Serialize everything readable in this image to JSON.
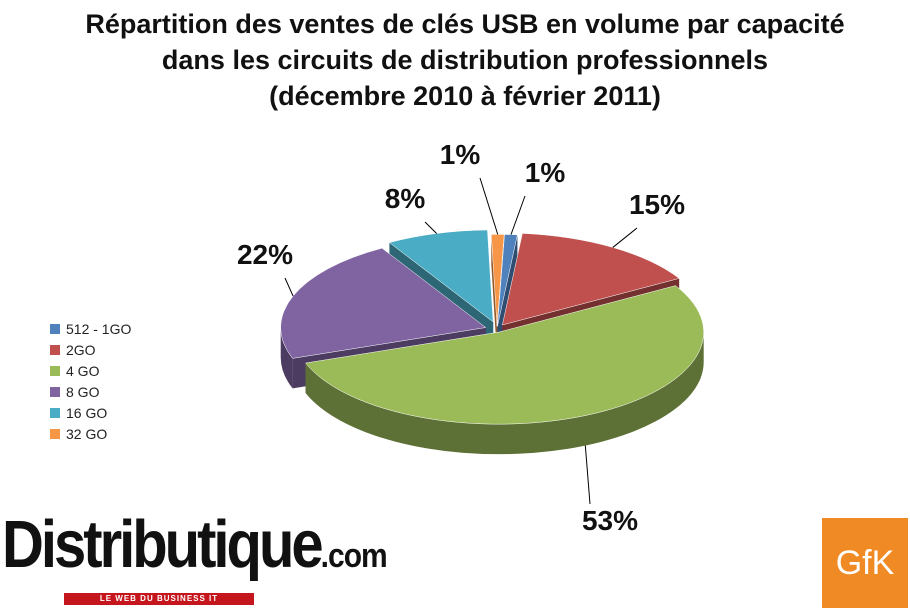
{
  "title": {
    "line1": "Répartition des ventes de clés USB en volume par capacité",
    "line2": "dans les circuits de distribution professionnels",
    "line3": "(décembre 2010 à février 2011)"
  },
  "chart_data": {
    "type": "pie",
    "title": "Répartition des ventes de clés USB en volume par capacité dans les circuits de distribution professionnels (décembre 2010 à février 2011)",
    "legend_position": "left",
    "slices": [
      {
        "label": "512 - 1GO",
        "value": 1,
        "value_label": "1%",
        "color": "#4f81bd",
        "side": "#2f4d71"
      },
      {
        "label": "2GO",
        "value": 15,
        "value_label": "15%",
        "color": "#c0504d",
        "side": "#73302e"
      },
      {
        "label": "4 GO",
        "value": 53,
        "value_label": "53%",
        "color": "#9bbb59",
        "side": "#5d7035"
      },
      {
        "label": "8 GO",
        "value": 22,
        "value_label": "22%",
        "color": "#8064a2",
        "side": "#4c3c61"
      },
      {
        "label": "16 GO",
        "value": 8,
        "value_label": "8%",
        "color": "#4bacc6",
        "side": "#2d6776"
      },
      {
        "label": "32 GO",
        "value": 1,
        "value_label": "1%",
        "color": "#f79646",
        "side": "#94592a"
      }
    ]
  },
  "branding": {
    "left_logo": "Distributique",
    "left_logo_tld": ".com",
    "left_tagline": "LE WEB DU BUSINESS IT",
    "right_logo": "GfK"
  }
}
